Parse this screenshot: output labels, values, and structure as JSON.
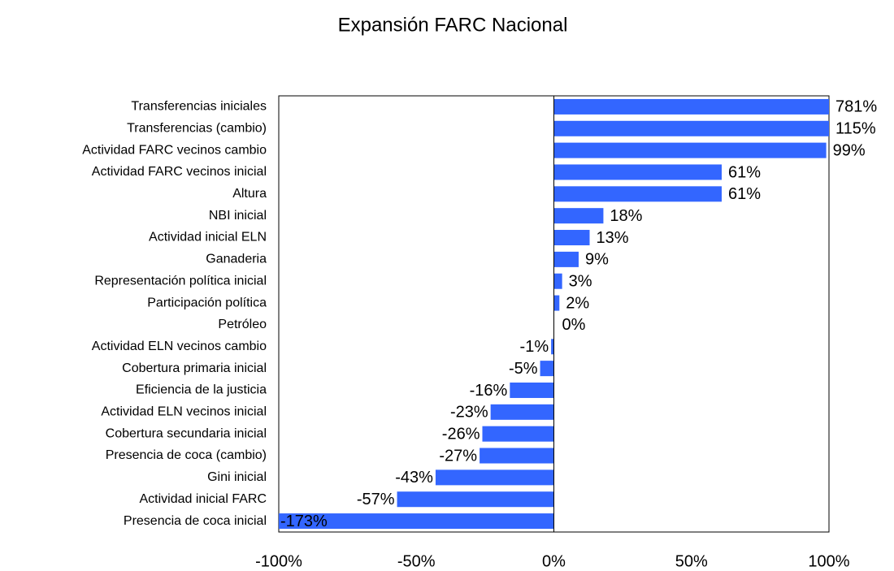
{
  "chart_data": {
    "type": "bar",
    "orientation": "horizontal",
    "title": "Expansión FARC Nacional",
    "categories": [
      "Transferencias iniciales",
      "Transferencias (cambio)",
      "Actividad FARC vecinos cambio",
      "Actividad FARC vecinos inicial",
      "Altura",
      "NBI inicial",
      "Actividad inicial ELN",
      "Ganaderia",
      "Representación política inicial",
      "Participación política",
      "Petróleo",
      "Actividad ELN vecinos cambio",
      "Cobertura primaria inicial",
      "Eficiencia de la justicia",
      "Actividad ELN vecinos inicial",
      "Cobertura secundaria inicial",
      "Presencia de coca (cambio)",
      "Gini inicial",
      "Actividad inicial FARC",
      "Presencia de coca inicial"
    ],
    "values": [
      781,
      115,
      99,
      61,
      61,
      18,
      13,
      9,
      3,
      2,
      0,
      -1,
      -5,
      -16,
      -23,
      -26,
      -27,
      -43,
      -57,
      -173
    ],
    "value_labels": [
      "781%",
      "115%",
      "99%",
      "61%",
      "61%",
      "18%",
      "13%",
      "9%",
      "3%",
      "2%",
      "0%",
      "-1%",
      "-5%",
      "-16%",
      "-23%",
      "-26%",
      "-27%",
      "-43%",
      "-57%",
      "-173%"
    ],
    "color": "#3366ff",
    "xlim": [
      -100,
      100
    ],
    "xticks": [
      {
        "value": -100,
        "label": "-100%"
      },
      {
        "value": -50,
        "label": "-50%"
      },
      {
        "value": 0,
        "label": "0%"
      },
      {
        "value": 50,
        "label": "50%"
      },
      {
        "value": 100,
        "label": "100%"
      }
    ],
    "grid": false
  }
}
